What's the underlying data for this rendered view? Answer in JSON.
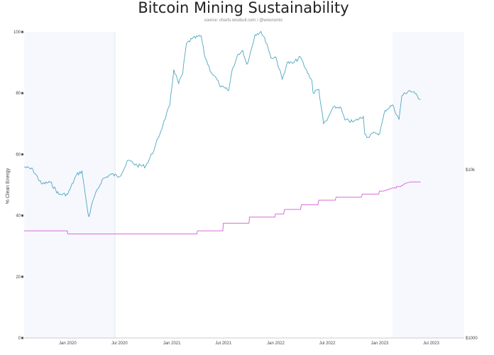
{
  "chart_data": {
    "type": "line",
    "title": "Bitcoin Mining Sustainability",
    "subtitle": "source: charts.woobull.com / @woonomic",
    "ylabel": "% Clean Energy",
    "ylim": [
      0,
      100
    ],
    "y_ticks": [
      "0",
      "20",
      "40",
      "60",
      "80",
      "100"
    ],
    "y2_ticks": [
      "$10k",
      "$1000"
    ],
    "x_ticks": [
      {
        "label": "Jan 2020",
        "date": "2020-01-01"
      },
      {
        "label": "Jul 2020",
        "date": "2020-07-01"
      },
      {
        "label": "Jan 2021",
        "date": "2021-01-01"
      },
      {
        "label": "Jul 2021",
        "date": "2021-07-01"
      },
      {
        "label": "Jan 2022",
        "date": "2022-01-01"
      },
      {
        "label": "Jul 2022",
        "date": "2022-07-01"
      },
      {
        "label": "Jan 2023",
        "date": "2023-01-01"
      },
      {
        "label": "Jul 2023",
        "date": "2023-07-01"
      }
    ],
    "x_range": [
      "2019-08-01",
      "2023-10-25"
    ],
    "shaded_ranges": [
      [
        "2019-08-01",
        "2020-06-15"
      ],
      [
        "2023-02-15",
        "2023-10-25"
      ]
    ],
    "grid": false,
    "colors": {
      "price": "#4fa6c2",
      "clean_energy": "#d66fd6",
      "shade": "#f6f8fd",
      "axis": "#cccccc",
      "text": "#444444"
    },
    "series": [
      {
        "color": "#4fa6c2",
        "axis": "right",
        "x": [
          "2019-08-01",
          "2019-09-01",
          "2019-10-01",
          "2019-11-01",
          "2019-12-01",
          "2020-01-01",
          "2020-02-01",
          "2020-02-20",
          "2020-03-12",
          "2020-03-16",
          "2020-04-01",
          "2020-05-01",
          "2020-06-01",
          "2020-07-01",
          "2020-08-01",
          "2020-09-01",
          "2020-10-01",
          "2020-11-01",
          "2020-12-01",
          "2020-12-25",
          "2021-01-08",
          "2021-01-25",
          "2021-02-08",
          "2021-02-21",
          "2021-03-13",
          "2021-04-14",
          "2021-04-25",
          "2021-05-19",
          "2021-06-01",
          "2021-06-22",
          "2021-07-20",
          "2021-08-01",
          "2021-08-23",
          "2021-09-07",
          "2021-09-21",
          "2021-10-01",
          "2021-10-20",
          "2021-11-10",
          "2021-12-01",
          "2021-12-15",
          "2022-01-01",
          "2022-01-24",
          "2022-02-10",
          "2022-03-01",
          "2022-03-29",
          "2022-04-15",
          "2022-05-08",
          "2022-05-12",
          "2022-06-01",
          "2022-06-18",
          "2022-07-01",
          "2022-07-20",
          "2022-08-15",
          "2022-09-01",
          "2022-10-01",
          "2022-11-05",
          "2022-11-10",
          "2022-11-21",
          "2022-12-15",
          "2023-01-01",
          "2023-01-20",
          "2023-02-15",
          "2023-03-10",
          "2023-03-20",
          "2023-04-15",
          "2023-05-05",
          "2023-05-25"
        ],
        "values": [
          10500,
          10100,
          8300,
          8500,
          7200,
          7200,
          9400,
          9900,
          5600,
          5300,
          6800,
          8800,
          9500,
          9200,
          11500,
          10700,
          10600,
          13500,
          18800,
          24500,
          40000,
          33000,
          38000,
          57000,
          61000,
          63500,
          49000,
          38500,
          36500,
          31500,
          30000,
          40000,
          49500,
          52000,
          43000,
          48000,
          64500,
          67500,
          57000,
          47000,
          47500,
          35000,
          44000,
          43500,
          47500,
          40500,
          34500,
          29000,
          30500,
          19000,
          20000,
          23500,
          24000,
          20000,
          19500,
          21000,
          16500,
          15800,
          16800,
          16600,
          22800,
          24600,
          20100,
          27900,
          30000,
          28700,
          26500
        ]
      },
      {
        "color": "#d66fd6",
        "axis": "left",
        "x": [
          "2019-08-01",
          "2019-12-31",
          "2020-01-01",
          "2020-06-29",
          "2020-07-01",
          "2020-12-29",
          "2020-12-31",
          "2021-03-30",
          "2021-04-01",
          "2021-06-29",
          "2021-07-01",
          "2021-09-29",
          "2021-10-01",
          "2021-12-29",
          "2021-12-31",
          "2022-01-29",
          "2022-02-01",
          "2022-03-29",
          "2022-04-01",
          "2022-05-29",
          "2022-06-01",
          "2022-07-29",
          "2022-08-01",
          "2022-10-29",
          "2022-11-01",
          "2022-12-29",
          "2022-12-31",
          "2023-01-15",
          "2023-02-15",
          "2023-02-28",
          "2023-03-01",
          "2023-03-15",
          "2023-04-01",
          "2023-04-20",
          "2023-05-25"
        ],
        "values": [
          35,
          35,
          34,
          34,
          34,
          34,
          34,
          34,
          35,
          35,
          37.5,
          37.5,
          39.5,
          39.5,
          40.5,
          40.5,
          42,
          42,
          43.5,
          43.5,
          45,
          45,
          46,
          46,
          47,
          47,
          48,
          48,
          49,
          49,
          49.5,
          49.5,
          50.5,
          51,
          51
        ]
      }
    ]
  }
}
